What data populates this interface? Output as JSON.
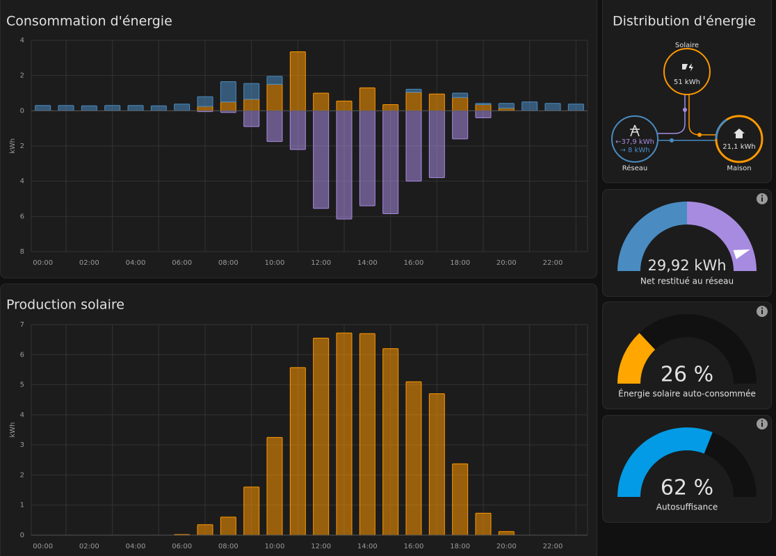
{
  "chart_data": [
    {
      "type": "bar",
      "stacked": true,
      "title": "Consommation d'énergie",
      "ylabel": "kWh",
      "categories": [
        "00:00",
        null,
        "02:00",
        null,
        "04:00",
        null,
        "06:00",
        null,
        "08:00",
        null,
        "10:00",
        null,
        "12:00",
        null,
        "14:00",
        null,
        "16:00",
        null,
        "18:00",
        null,
        "20:00",
        null,
        "22:00",
        null
      ],
      "series": [
        {
          "color": "#ff9800",
          "values": [
            0,
            0,
            0,
            0,
            0,
            0,
            0,
            0.25,
            0.5,
            0.65,
            1.5,
            3.35,
            1.0,
            0.55,
            1.3,
            0.35,
            1.05,
            0.95,
            0.75,
            0.35,
            0.15,
            0,
            0,
            0
          ]
        },
        {
          "color": "#4a8cc2",
          "values": [
            0.3,
            0.3,
            0.28,
            0.3,
            0.3,
            0.28,
            0.38,
            0.55,
            1.15,
            0.9,
            0.45,
            0,
            0,
            0,
            0,
            0,
            0.17,
            0,
            0.25,
            0.07,
            0.27,
            0.5,
            0.42,
            0.38
          ]
        },
        {
          "color": "#a78be0",
          "values": [
            0,
            0,
            0,
            0,
            0,
            0,
            0,
            -0.05,
            -0.1,
            -0.9,
            -1.75,
            -2.2,
            -5.55,
            -6.15,
            -5.4,
            -5.85,
            -4.0,
            -3.8,
            -1.6,
            -0.4,
            0,
            0,
            0,
            0
          ]
        }
      ],
      "ylim": [
        -8,
        4
      ],
      "yticks": [
        {
          "value": -8,
          "label": "8"
        },
        {
          "value": -6,
          "label": "6"
        },
        {
          "value": -4,
          "label": "4"
        },
        {
          "value": -2,
          "label": "2"
        },
        0,
        2,
        4
      ],
      "grid": true
    },
    {
      "type": "bar",
      "stacked": false,
      "title": "Production solaire",
      "ylabel": "kWh",
      "categories": [
        "00:00",
        null,
        "02:00",
        null,
        "04:00",
        null,
        "06:00",
        null,
        "08:00",
        null,
        "10:00",
        null,
        "12:00",
        null,
        "14:00",
        null,
        "16:00",
        null,
        "18:00",
        null,
        "20:00",
        null,
        "22:00",
        null
      ],
      "series": [
        {
          "color": "#ff9800",
          "values": [
            0,
            0,
            0,
            0,
            0,
            0,
            0.02,
            0.35,
            0.6,
            1.6,
            3.25,
            5.57,
            6.55,
            6.72,
            6.7,
            6.2,
            5.1,
            4.7,
            2.37,
            0.73,
            0.12,
            0,
            0,
            0
          ]
        }
      ],
      "ylim": [
        0,
        7
      ],
      "yticks": [
        0,
        1,
        2,
        3,
        4,
        5,
        6,
        7
      ],
      "grid": true
    }
  ],
  "distribution": {
    "title": "Distribution d'énergie",
    "solar": {
      "label": "Solaire",
      "value": "51 kWh"
    },
    "grid": {
      "label": "Réseau",
      "import": "←37,9 kWh",
      "export": "→ 8 kWh"
    },
    "home": {
      "label": "Maison",
      "value": "21,1 kWh"
    }
  },
  "gauges": [
    {
      "style": "needle",
      "value": 29.92,
      "value_label": "29,92 kWh",
      "name": "Net restitué au réseau",
      "range": [
        -37.9,
        37.9
      ],
      "segments": [
        {
          "from": -37.9,
          "color": "#4a8cc2"
        },
        {
          "from": 0,
          "color": "#a78be0"
        }
      ]
    },
    {
      "style": "fill",
      "value": 26,
      "value_label": "26 %",
      "name": "Énergie solaire auto-consommée",
      "range": [
        0,
        100
      ],
      "color": "#ffa600"
    },
    {
      "style": "fill",
      "value": 62,
      "value_label": "62 %",
      "name": "Autosuffisance",
      "range": [
        0,
        100
      ],
      "color": "#039be5"
    }
  ]
}
